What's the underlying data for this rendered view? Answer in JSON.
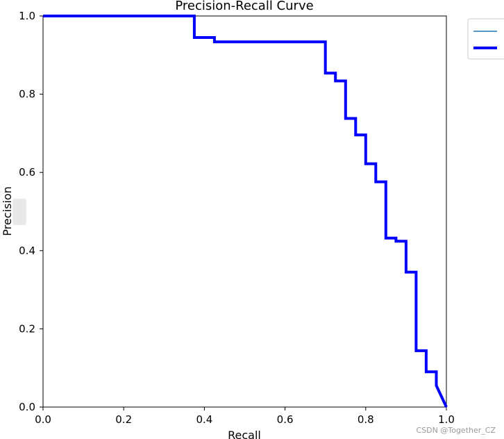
{
  "chart_data": {
    "type": "line",
    "title": "Precision-Recall Curve",
    "xlabel": "Recall",
    "ylabel": "Precision",
    "xlim": [
      0,
      1
    ],
    "ylim": [
      0,
      1
    ],
    "xticks": [
      "0.0",
      "0.2",
      "0.4",
      "0.6",
      "0.8",
      "1.0"
    ],
    "yticks": [
      "0.0",
      "0.2",
      "0.4",
      "0.6",
      "0.8",
      "1.0"
    ],
    "grid": false,
    "legend_position": "outside-top-right",
    "series": [
      {
        "color": "#1f77b4",
        "line": "thin",
        "x": [],
        "y": []
      },
      {
        "color": "#0000ff",
        "line": "thick",
        "step": true,
        "x": [
          0.0,
          0.375,
          0.375,
          0.425,
          0.425,
          0.7,
          0.7,
          0.725,
          0.725,
          0.75,
          0.75,
          0.775,
          0.775,
          0.8,
          0.8,
          0.825,
          0.825,
          0.85,
          0.85,
          0.875,
          0.875,
          0.9,
          0.9,
          0.925,
          0.925,
          0.95,
          0.95,
          0.975,
          0.975,
          1.0
        ],
        "y": [
          1.0,
          1.0,
          0.945,
          0.945,
          0.934,
          0.934,
          0.854,
          0.854,
          0.834,
          0.834,
          0.738,
          0.738,
          0.696,
          0.696,
          0.622,
          0.622,
          0.576,
          0.576,
          0.432,
          0.432,
          0.424,
          0.424,
          0.345,
          0.345,
          0.144,
          0.144,
          0.09,
          0.09,
          0.055,
          0.0
        ]
      }
    ]
  },
  "watermark": "CSDN @Together_CZ"
}
